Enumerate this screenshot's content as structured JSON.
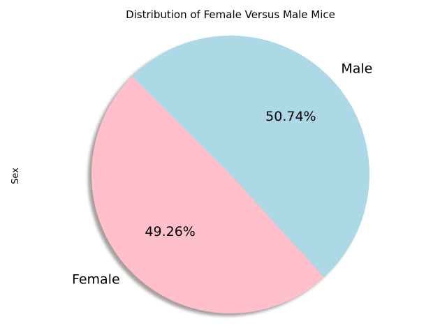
{
  "chart_data": {
    "type": "pie",
    "title": "Distribution of Female Versus Male Mice",
    "ylabel": "Sex",
    "categories": [
      "Female",
      "Male"
    ],
    "values": [
      49.26,
      50.74
    ],
    "value_labels": [
      "49.26%",
      "50.74%"
    ],
    "colors": [
      "#ffc0cb",
      "#add8e6"
    ],
    "start_angle_deg": 135,
    "shadow": true,
    "legend": false
  }
}
